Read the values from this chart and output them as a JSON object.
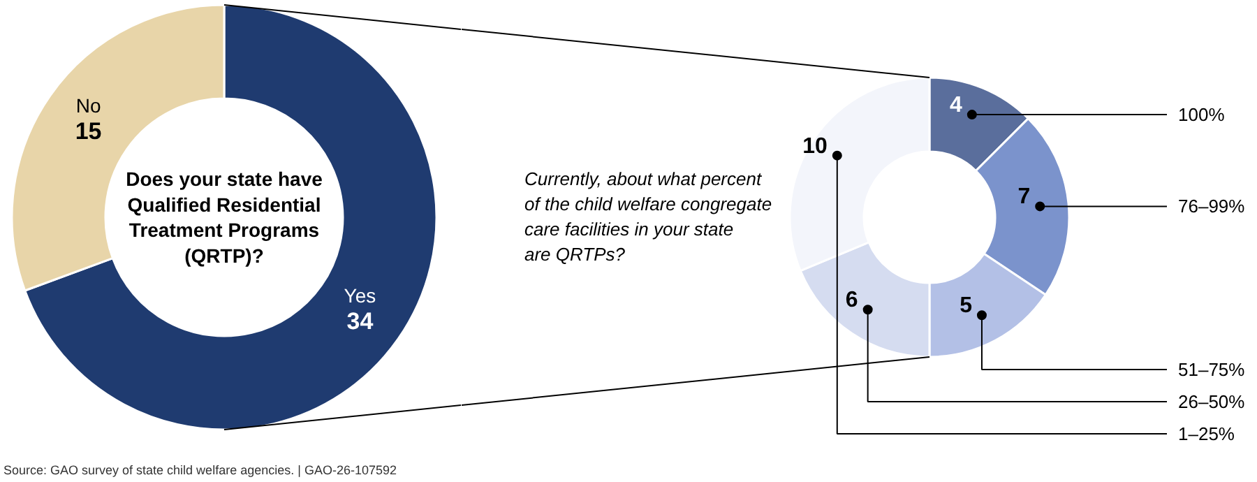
{
  "chart_data": [
    {
      "type": "donut",
      "title": "Does your state have Qualified Residential Treatment Programs (QRTP)?",
      "categories": [
        "Yes",
        "No"
      ],
      "values": [
        34,
        15
      ],
      "colors": [
        "#1f3b70",
        "#e8d5a9"
      ],
      "data_labels": true,
      "annotations": [
        "Source: GAO survey of state child welfare agencies.  |  GAO-26-107592"
      ]
    },
    {
      "type": "donut",
      "title": "Currently, about what percent of the child welfare congregate care facilities in your state are QRTPs?",
      "categories": [
        "100%",
        "76–99%",
        "51–75%",
        "26–50%",
        "1–25%"
      ],
      "values": [
        4,
        7,
        5,
        6,
        10
      ],
      "colors": [
        "#5a6e9c",
        "#7b93cc",
        "#b3c0e6",
        "#d5dcf0",
        "#f3f5fb"
      ],
      "data_labels": true
    }
  ]
}
